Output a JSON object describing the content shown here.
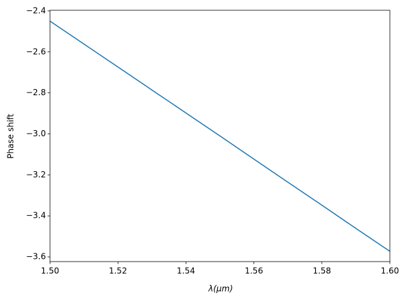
{
  "chart_data": {
    "type": "line",
    "x_label": "λ(μm)",
    "y_label": "Phase shift",
    "x": [
      1.5,
      1.51,
      1.52,
      1.53,
      1.54,
      1.55,
      1.56,
      1.57,
      1.58,
      1.59,
      1.6
    ],
    "series": [
      {
        "color": "#1f77b4",
        "values": [
          -2.45,
          -2.562,
          -2.674,
          -2.786,
          -2.898,
          -3.01,
          -3.123,
          -3.236,
          -3.348,
          -3.461,
          -3.573
        ]
      }
    ],
    "xlim": [
      1.5,
      1.6
    ],
    "ylim": [
      -3.623,
      -2.397
    ],
    "xticks": [
      {
        "value": 1.5,
        "label": "1.50"
      },
      {
        "value": 1.52,
        "label": "1.52"
      },
      {
        "value": 1.54,
        "label": "1.54"
      },
      {
        "value": 1.56,
        "label": "1.56"
      },
      {
        "value": 1.58,
        "label": "1.58"
      },
      {
        "value": 1.6,
        "label": "1.60"
      }
    ],
    "yticks": [
      {
        "value": -3.6,
        "label": "−3.6"
      },
      {
        "value": -3.4,
        "label": "−3.4"
      },
      {
        "value": -3.2,
        "label": "−3.2"
      },
      {
        "value": -3.0,
        "label": "−3.0"
      },
      {
        "value": -2.8,
        "label": "−2.8"
      },
      {
        "value": -2.6,
        "label": "−2.6"
      },
      {
        "value": -2.4,
        "label": "−2.4"
      }
    ],
    "grid": false
  }
}
